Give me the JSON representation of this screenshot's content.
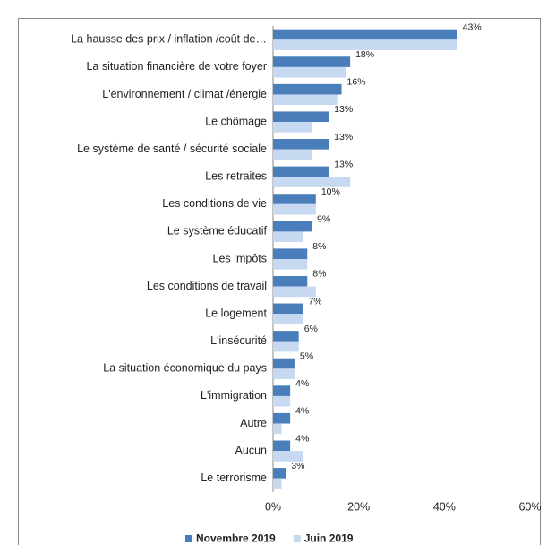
{
  "chart_data": {
    "type": "bar",
    "orientation": "horizontal",
    "categories": [
      "La hausse des prix / inflation /coût de…",
      "La situation financière de votre foyer",
      "L'environnement / climat /énergie",
      "Le chômage",
      "Le système de santé / sécurité sociale",
      "Les retraites",
      "Les conditions de vie",
      "Le système éducatif",
      "Les impôts",
      "Les conditions de travail",
      "Le logement",
      "L'insécurité",
      "La situation économique du pays",
      "L'immigration",
      "Autre",
      "Aucun",
      "Le terrorisme"
    ],
    "series": [
      {
        "name": "Novembre 2019",
        "color": "#4a7ebb",
        "values": [
          43,
          18,
          16,
          13,
          13,
          13,
          10,
          9,
          8,
          8,
          7,
          6,
          5,
          4,
          4,
          4,
          3
        ],
        "value_labels": [
          "43%",
          "18%",
          "16%",
          "13%",
          "13%",
          "13%",
          "10%",
          "9%",
          "8%",
          "8%",
          "7%",
          "6%",
          "5%",
          "4%",
          "4%",
          "4%",
          "3%"
        ]
      },
      {
        "name": "Juin 2019",
        "color": "#c6d9f1",
        "values": [
          43,
          17,
          15,
          9,
          9,
          18,
          10,
          7,
          8,
          10,
          7,
          6,
          5,
          4,
          2,
          7,
          2
        ]
      }
    ],
    "xlim": [
      0,
      60
    ],
    "xticks": [
      {
        "value": 0,
        "label": "0%"
      },
      {
        "value": 20,
        "label": "20%"
      },
      {
        "value": 40,
        "label": "40%"
      },
      {
        "value": 60,
        "label": "60%"
      }
    ],
    "grid": false,
    "legend": "bottom"
  }
}
